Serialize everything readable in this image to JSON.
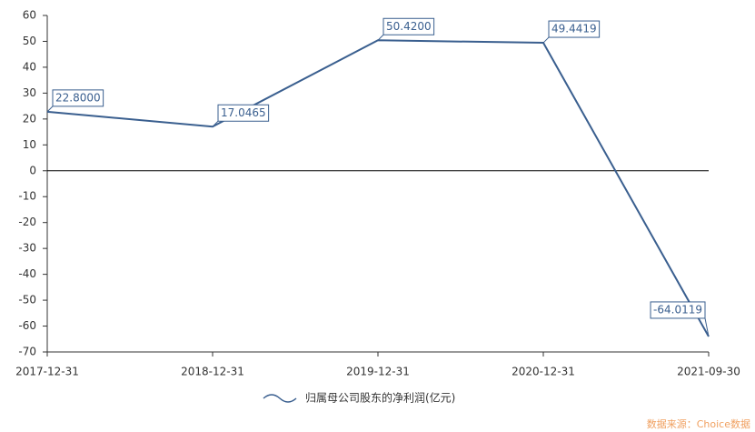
{
  "chart_data": {
    "type": "line",
    "categories": [
      "2017-12-31",
      "2018-12-31",
      "2019-12-31",
      "2020-12-31",
      "2021-09-30"
    ],
    "series": [
      {
        "name": "归属母公司股东的净利润(亿元)",
        "color": "#3a5f8f",
        "values": [
          22.8,
          17.0465,
          50.42,
          49.4419,
          -64.0119
        ],
        "value_labels": [
          "22.8000",
          "17.0465",
          "50.4200",
          "49.4419",
          "-64.0119"
        ]
      }
    ],
    "ylim": [
      -70,
      60
    ],
    "yticks": [
      -70,
      -60,
      -50,
      -40,
      -30,
      -20,
      -10,
      0,
      10,
      20,
      30,
      40,
      50,
      60
    ],
    "legend": "bottom",
    "source": "数据来源：Choice数据"
  }
}
